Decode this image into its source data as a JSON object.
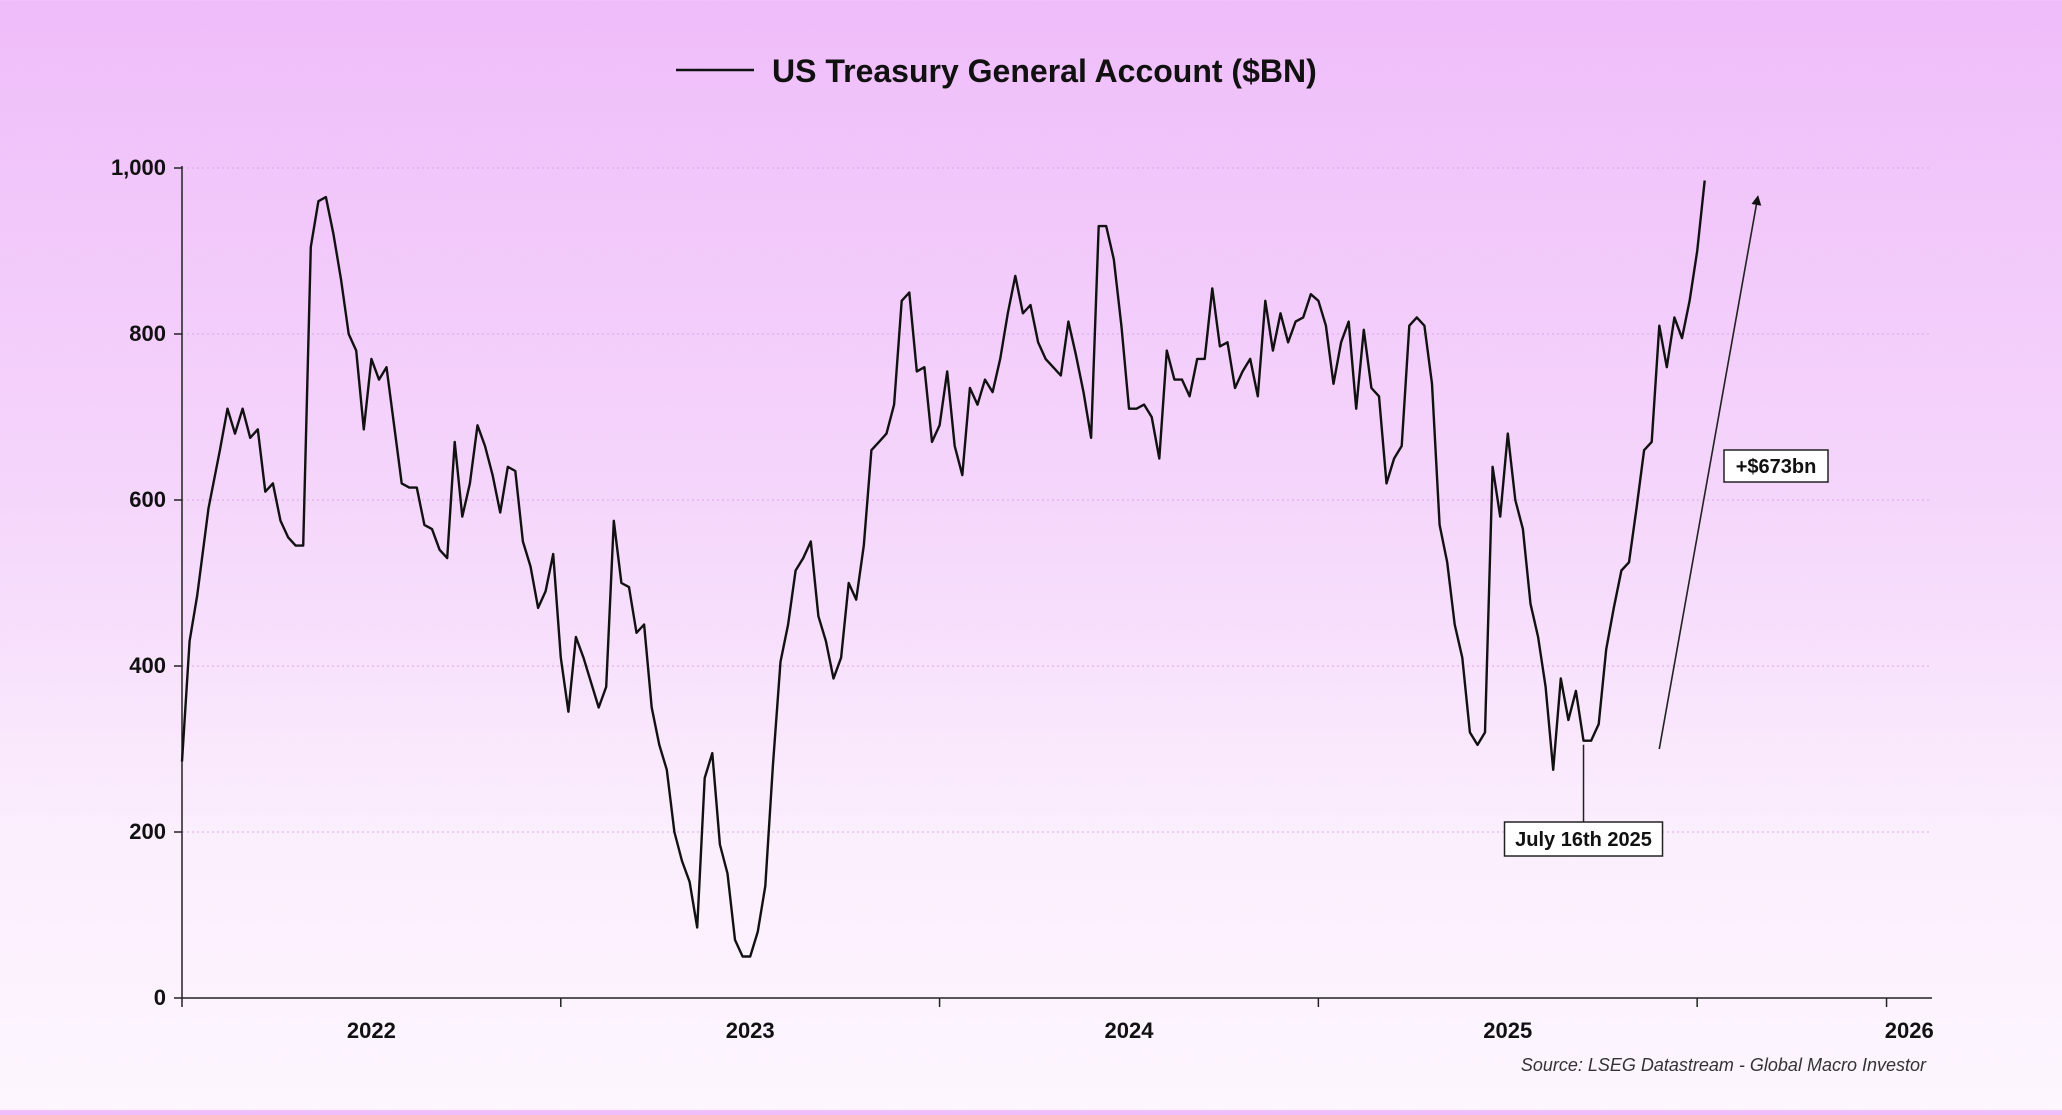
{
  "chart_data": {
    "type": "line",
    "title": "US Treasury General Account ($BN)",
    "legend": {
      "label": "US Treasury General Account ($BN)",
      "placement": "top-center"
    },
    "xlabel": "",
    "ylabel": "",
    "xlim": [
      2021.5,
      2026.12
    ],
    "ylim": [
      0,
      1000
    ],
    "yticks": [
      0,
      200,
      400,
      600,
      800,
      1000
    ],
    "ytick_labels": [
      "0",
      "200",
      "400",
      "600",
      "800",
      "1,000"
    ],
    "xticks_major": [
      2021.5,
      2022.5,
      2023.5,
      2024.5,
      2025.5,
      2026.0
    ],
    "xtick_labels": [
      {
        "label": "2022",
        "x": 2022.0
      },
      {
        "label": "2023",
        "x": 2023.0
      },
      {
        "label": "2024",
        "x": 2024.0
      },
      {
        "label": "2025",
        "x": 2025.0
      },
      {
        "label": "2026",
        "x": 2026.06
      }
    ],
    "grid": true,
    "source": "Source: LSEG Datastream - Global Macro Investor",
    "series": [
      {
        "name": "US Treasury General Account ($BN)",
        "color": "#111111",
        "points": [
          [
            2021.5,
            285
          ],
          [
            2021.52,
            430
          ],
          [
            2021.54,
            485
          ],
          [
            2021.57,
            590
          ],
          [
            2021.6,
            660
          ],
          [
            2021.62,
            710
          ],
          [
            2021.64,
            680
          ],
          [
            2021.66,
            710
          ],
          [
            2021.68,
            675
          ],
          [
            2021.7,
            685
          ],
          [
            2021.72,
            610
          ],
          [
            2021.74,
            620
          ],
          [
            2021.76,
            575
          ],
          [
            2021.78,
            555
          ],
          [
            2021.8,
            545
          ],
          [
            2021.82,
            545
          ],
          [
            2021.84,
            905
          ],
          [
            2021.86,
            960
          ],
          [
            2021.88,
            965
          ],
          [
            2021.9,
            920
          ],
          [
            2021.92,
            865
          ],
          [
            2021.94,
            800
          ],
          [
            2021.96,
            780
          ],
          [
            2021.98,
            685
          ],
          [
            2022.0,
            770
          ],
          [
            2022.02,
            745
          ],
          [
            2022.04,
            760
          ],
          [
            2022.06,
            690
          ],
          [
            2022.08,
            620
          ],
          [
            2022.1,
            615
          ],
          [
            2022.12,
            615
          ],
          [
            2022.14,
            570
          ],
          [
            2022.16,
            565
          ],
          [
            2022.18,
            540
          ],
          [
            2022.2,
            530
          ],
          [
            2022.22,
            670
          ],
          [
            2022.24,
            580
          ],
          [
            2022.26,
            620
          ],
          [
            2022.28,
            690
          ],
          [
            2022.3,
            665
          ],
          [
            2022.32,
            630
          ],
          [
            2022.34,
            585
          ],
          [
            2022.36,
            640
          ],
          [
            2022.38,
            635
          ],
          [
            2022.4,
            550
          ],
          [
            2022.42,
            520
          ],
          [
            2022.44,
            470
          ],
          [
            2022.46,
            490
          ],
          [
            2022.48,
            535
          ],
          [
            2022.5,
            410
          ],
          [
            2022.52,
            345
          ],
          [
            2022.54,
            435
          ],
          [
            2022.56,
            410
          ],
          [
            2022.58,
            380
          ],
          [
            2022.6,
            350
          ],
          [
            2022.62,
            375
          ],
          [
            2022.64,
            575
          ],
          [
            2022.66,
            500
          ],
          [
            2022.68,
            495
          ],
          [
            2022.7,
            440
          ],
          [
            2022.72,
            450
          ],
          [
            2022.74,
            350
          ],
          [
            2022.76,
            305
          ],
          [
            2022.78,
            275
          ],
          [
            2022.8,
            200
          ],
          [
            2022.82,
            165
          ],
          [
            2022.84,
            140
          ],
          [
            2022.86,
            85
          ],
          [
            2022.88,
            265
          ],
          [
            2022.9,
            295
          ],
          [
            2022.92,
            185
          ],
          [
            2022.94,
            150
          ],
          [
            2022.96,
            70
          ],
          [
            2022.98,
            50
          ],
          [
            2023.0,
            50
          ],
          [
            2023.02,
            80
          ],
          [
            2023.04,
            135
          ],
          [
            2023.06,
            280
          ],
          [
            2023.08,
            405
          ],
          [
            2023.1,
            450
          ],
          [
            2023.12,
            515
          ],
          [
            2023.14,
            530
          ],
          [
            2023.16,
            550
          ],
          [
            2023.18,
            460
          ],
          [
            2023.2,
            430
          ],
          [
            2023.22,
            385
          ],
          [
            2023.24,
            410
          ],
          [
            2023.26,
            500
          ],
          [
            2023.28,
            480
          ],
          [
            2023.3,
            545
          ],
          [
            2023.32,
            660
          ],
          [
            2023.34,
            670
          ],
          [
            2023.36,
            680
          ],
          [
            2023.38,
            715
          ],
          [
            2023.4,
            840
          ],
          [
            2023.42,
            850
          ],
          [
            2023.44,
            755
          ],
          [
            2023.46,
            760
          ],
          [
            2023.48,
            670
          ],
          [
            2023.5,
            690
          ],
          [
            2023.52,
            755
          ],
          [
            2023.54,
            665
          ],
          [
            2023.56,
            630
          ],
          [
            2023.58,
            735
          ],
          [
            2023.6,
            715
          ],
          [
            2023.62,
            745
          ],
          [
            2023.64,
            730
          ],
          [
            2023.66,
            770
          ],
          [
            2023.68,
            825
          ],
          [
            2023.7,
            870
          ],
          [
            2023.72,
            825
          ],
          [
            2023.74,
            835
          ],
          [
            2023.76,
            790
          ],
          [
            2023.78,
            770
          ],
          [
            2023.8,
            760
          ],
          [
            2023.82,
            750
          ],
          [
            2023.84,
            815
          ],
          [
            2023.86,
            775
          ],
          [
            2023.88,
            730
          ],
          [
            2023.9,
            675
          ],
          [
            2023.92,
            930
          ],
          [
            2023.94,
            930
          ],
          [
            2023.96,
            890
          ],
          [
            2023.98,
            810
          ],
          [
            2024.0,
            710
          ],
          [
            2024.02,
            710
          ],
          [
            2024.04,
            715
          ],
          [
            2024.06,
            700
          ],
          [
            2024.08,
            650
          ],
          [
            2024.1,
            780
          ],
          [
            2024.12,
            745
          ],
          [
            2024.14,
            745
          ],
          [
            2024.16,
            725
          ],
          [
            2024.18,
            770
          ],
          [
            2024.2,
            770
          ],
          [
            2024.22,
            855
          ],
          [
            2024.24,
            785
          ],
          [
            2024.26,
            790
          ],
          [
            2024.28,
            735
          ],
          [
            2024.3,
            755
          ],
          [
            2024.32,
            770
          ],
          [
            2024.34,
            725
          ],
          [
            2024.36,
            840
          ],
          [
            2024.38,
            780
          ],
          [
            2024.4,
            825
          ],
          [
            2024.42,
            790
          ],
          [
            2024.44,
            815
          ],
          [
            2024.46,
            820
          ],
          [
            2024.48,
            848
          ],
          [
            2024.5,
            840
          ],
          [
            2024.52,
            810
          ],
          [
            2024.54,
            740
          ],
          [
            2024.56,
            790
          ],
          [
            2024.58,
            815
          ],
          [
            2024.6,
            710
          ],
          [
            2024.62,
            805
          ],
          [
            2024.64,
            735
          ],
          [
            2024.66,
            725
          ],
          [
            2024.68,
            620
          ],
          [
            2024.7,
            650
          ],
          [
            2024.72,
            665
          ],
          [
            2024.74,
            810
          ],
          [
            2024.76,
            820
          ],
          [
            2024.78,
            810
          ],
          [
            2024.8,
            740
          ],
          [
            2024.82,
            570
          ],
          [
            2024.84,
            525
          ],
          [
            2024.86,
            450
          ],
          [
            2024.88,
            410
          ],
          [
            2024.9,
            320
          ],
          [
            2024.92,
            305
          ],
          [
            2024.94,
            320
          ],
          [
            2024.96,
            640
          ],
          [
            2024.98,
            580
          ],
          [
            2025.0,
            680
          ],
          [
            2025.02,
            600
          ],
          [
            2025.04,
            565
          ],
          [
            2025.06,
            475
          ],
          [
            2025.08,
            435
          ],
          [
            2025.1,
            375
          ],
          [
            2025.12,
            275
          ],
          [
            2025.14,
            385
          ],
          [
            2025.16,
            335
          ],
          [
            2025.18,
            370
          ],
          [
            2025.2,
            310
          ],
          [
            2025.22,
            310
          ],
          [
            2025.24,
            330
          ],
          [
            2025.26,
            420
          ],
          [
            2025.28,
            470
          ],
          [
            2025.3,
            515
          ],
          [
            2025.32,
            525
          ],
          [
            2025.34,
            590
          ],
          [
            2025.36,
            660
          ],
          [
            2025.38,
            670
          ],
          [
            2025.4,
            810
          ],
          [
            2025.42,
            760
          ],
          [
            2025.44,
            820
          ],
          [
            2025.46,
            795
          ],
          [
            2025.48,
            840
          ],
          [
            2025.5,
            900
          ],
          [
            2025.52,
            985
          ]
        ]
      }
    ],
    "annotations": [
      {
        "type": "callout",
        "text": "July 16th 2025",
        "x": 2025.2,
        "y": 310
      },
      {
        "type": "arrow",
        "text": "+$673bn",
        "from": [
          2025.4,
          300
        ],
        "to": [
          2025.66,
          965
        ]
      }
    ]
  }
}
